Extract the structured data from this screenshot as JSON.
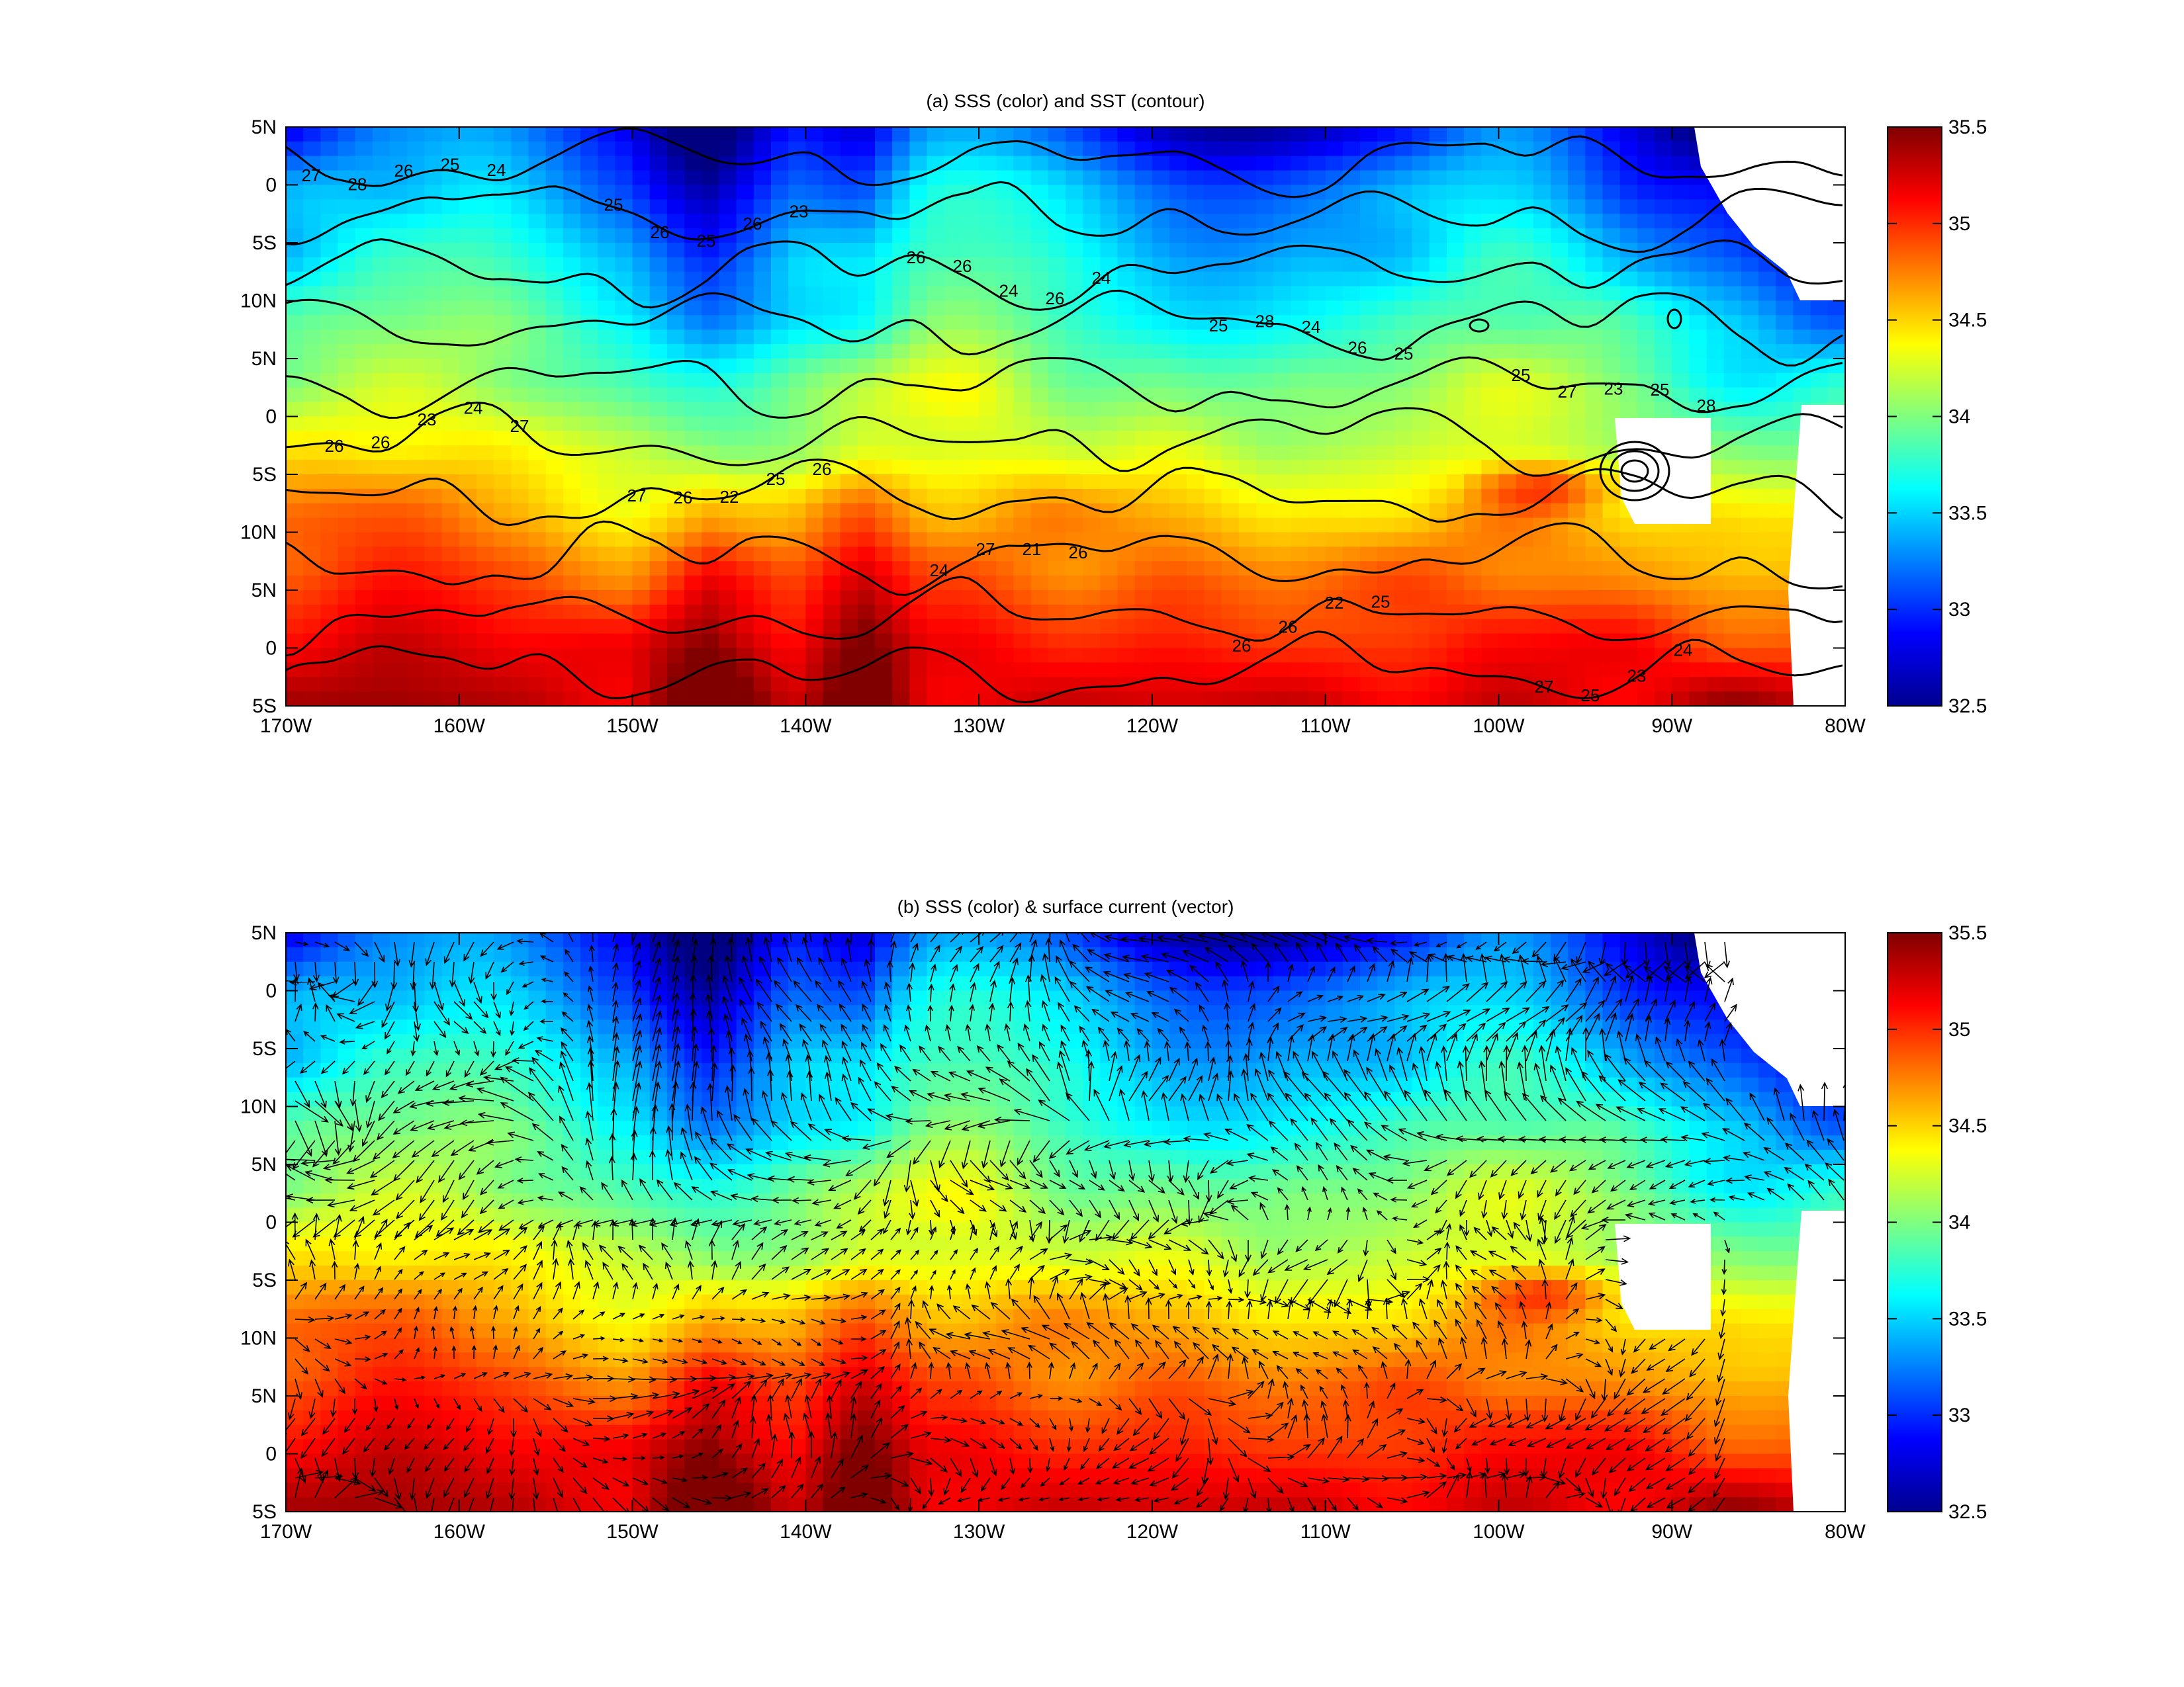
{
  "chart_data": [
    {
      "type": "heatmap",
      "title": "(a) SSS (color) and SST (contour)",
      "colormap": "jet",
      "x_ticks": [
        "170W",
        "160W",
        "150W",
        "140W",
        "130W",
        "120W",
        "110W",
        "100W",
        "90W",
        "80W"
      ],
      "y_ticks": [
        "5N",
        "0",
        "5S",
        "10N",
        "5N",
        "0",
        "5S",
        "10N",
        "5N",
        "0",
        "5S"
      ],
      "colorbar": {
        "ticks": [
          "35.5",
          "35",
          "34.5",
          "34",
          "33.5",
          "33",
          "32.5"
        ],
        "range": [
          32.5,
          35.5
        ]
      },
      "contour_labels": [
        "27",
        "25",
        "26",
        "25",
        "25",
        "26",
        "27",
        "24",
        "26",
        "27",
        "28",
        "26",
        "26",
        "28",
        "27",
        "26",
        "26",
        "27",
        "26",
        "25",
        "26",
        "25",
        "24",
        "24",
        "23",
        "23",
        "22",
        "21",
        "22",
        "23",
        "25",
        "26",
        "26",
        "26",
        "25",
        "24",
        "25",
        "26",
        "25",
        "24",
        "24",
        "23",
        "24",
        "25",
        "28",
        "27",
        "26"
      ],
      "overlay": "contour"
    },
    {
      "type": "heatmap",
      "title": "(b) SSS (color) & surface current (vector)",
      "colormap": "jet",
      "x_ticks": [
        "170W",
        "160W",
        "150W",
        "140W",
        "130W",
        "120W",
        "110W",
        "100W",
        "90W",
        "80W"
      ],
      "y_ticks": [
        "5N",
        "0",
        "5S",
        "10N",
        "5N",
        "0",
        "5S",
        "10N",
        "5N",
        "0",
        "5S"
      ],
      "colorbar": {
        "ticks": [
          "35.5",
          "35",
          "34.5",
          "34",
          "33.5",
          "33",
          "32.5"
        ],
        "range": [
          32.5,
          35.5
        ]
      },
      "overlay": "vector"
    }
  ]
}
